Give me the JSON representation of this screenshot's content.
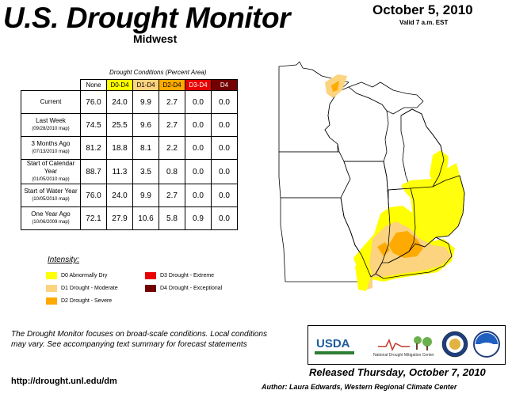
{
  "header": {
    "title": "U.S. Drought Monitor",
    "region": "Midwest",
    "date": "October 5, 2010",
    "valid": "Valid 7 a.m. EST"
  },
  "table": {
    "caption": "Drought Conditions (Percent Area)",
    "columns": [
      "None",
      "D0-D4",
      "D1-D4",
      "D2-D4",
      "D3-D4",
      "D4"
    ],
    "rows": [
      {
        "label": "Current",
        "sub": "",
        "values": [
          "76.0",
          "24.0",
          "9.9",
          "2.7",
          "0.0",
          "0.0"
        ]
      },
      {
        "label": "Last Week",
        "sub": "(09/28/2010 map)",
        "values": [
          "74.5",
          "25.5",
          "9.6",
          "2.7",
          "0.0",
          "0.0"
        ]
      },
      {
        "label": "3 Months Ago",
        "sub": "(07/13/2010 map)",
        "values": [
          "81.2",
          "18.8",
          "8.1",
          "2.2",
          "0.0",
          "0.0"
        ]
      },
      {
        "label": "Start of Calendar Year",
        "sub": "(01/05/2010 map)",
        "values": [
          "88.7",
          "11.3",
          "3.5",
          "0.8",
          "0.0",
          "0.0"
        ]
      },
      {
        "label": "Start of Water Year",
        "sub": "(10/05/2010 map)",
        "values": [
          "76.0",
          "24.0",
          "9.9",
          "2.7",
          "0.0",
          "0.0"
        ]
      },
      {
        "label": "One Year Ago",
        "sub": "(10/06/2009 map)",
        "values": [
          "72.1",
          "27.9",
          "10.6",
          "5.8",
          "0.9",
          "0.0"
        ]
      }
    ]
  },
  "legend": {
    "title": "Intensity:",
    "items": [
      {
        "label": "D0 Abnormally Dry",
        "color": "#ffff00"
      },
      {
        "label": "D1 Drought - Moderate",
        "color": "#fcd37f"
      },
      {
        "label": "D2 Drought - Severe",
        "color": "#ffaa00"
      },
      {
        "label": "D3 Drought - Extreme",
        "color": "#e60000"
      },
      {
        "label": "D4 Drought - Exceptional",
        "color": "#730000"
      }
    ]
  },
  "footer": {
    "note": "The Drought Monitor focuses on broad-scale conditions. Local conditions may vary. See accompanying text summary for forecast statements",
    "url": "http://drought.unl.edu/dm",
    "released": "Released Thursday, October 7, 2010",
    "author": "Author: Laura Edwards, Western Regional Climate Center"
  },
  "logos": {
    "usda": "USDA",
    "ndmc": "National Drought Mitigation Center"
  }
}
